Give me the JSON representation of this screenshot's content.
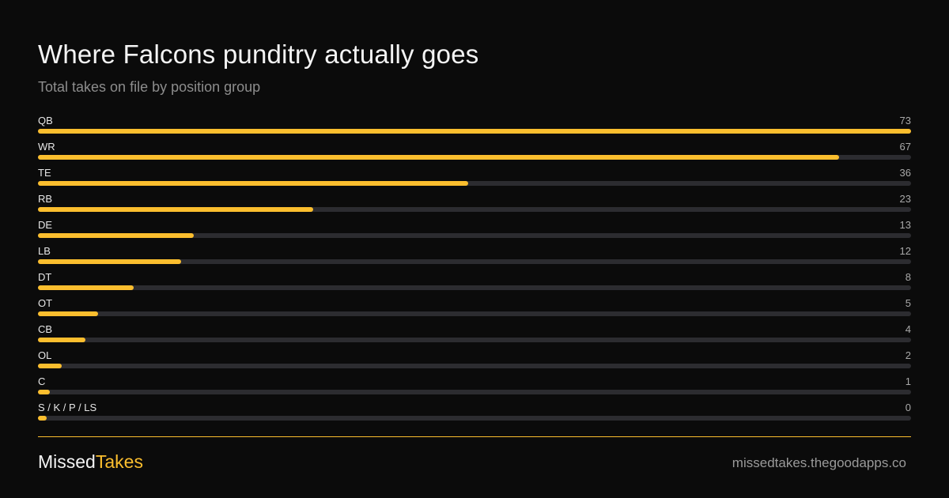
{
  "header": {
    "title": "Where Falcons punditry actually goes",
    "subtitle": "Total takes on file by position group"
  },
  "chart_data": {
    "type": "bar",
    "orientation": "horizontal",
    "title": "Where Falcons punditry actually goes",
    "subtitle": "Total takes on file by position group",
    "categories": [
      "QB",
      "WR",
      "TE",
      "RB",
      "DE",
      "LB",
      "DT",
      "OT",
      "CB",
      "OL",
      "C",
      "S / K / P / LS"
    ],
    "values": [
      73,
      67,
      36,
      23,
      13,
      12,
      8,
      5,
      4,
      2,
      1,
      0
    ],
    "xlim": [
      0,
      73
    ],
    "grid": false,
    "colors": {
      "bar": "#fbbe2e",
      "track": "#2c2c30"
    }
  },
  "footer": {
    "brand_part1": "Missed",
    "brand_part2": "Takes",
    "site": "missedtakes.thegoodapps.co"
  },
  "colors": {
    "background": "#0b0b0b",
    "accent": "#fbbe2e"
  }
}
